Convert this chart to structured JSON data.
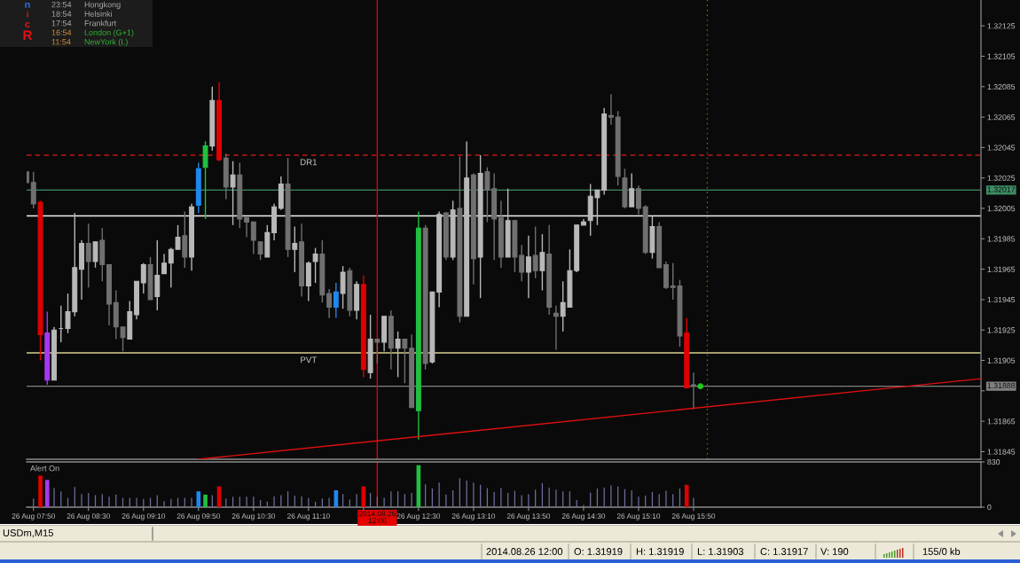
{
  "chart_data": [
    {
      "type": "candlestick",
      "x": [
        "2014-08-26T07:45",
        "2014-08-26T07:50",
        "2014-08-26T07:55",
        "2014-08-26T08:00",
        "2014-08-26T08:05",
        "2014-08-26T08:10",
        "2014-08-26T08:15",
        "2014-08-26T08:20",
        "2014-08-26T08:25",
        "2014-08-26T08:30",
        "2014-08-26T08:35",
        "2014-08-26T08:40",
        "2014-08-26T08:45",
        "2014-08-26T08:50",
        "2014-08-26T08:55",
        "2014-08-26T09:00",
        "2014-08-26T09:05",
        "2014-08-26T09:10",
        "2014-08-26T09:15",
        "2014-08-26T09:20",
        "2014-08-26T09:25",
        "2014-08-26T09:30",
        "2014-08-26T09:35",
        "2014-08-26T09:40",
        "2014-08-26T09:45",
        "2014-08-26T09:50",
        "2014-08-26T09:55",
        "2014-08-26T10:00",
        "2014-08-26T10:05",
        "2014-08-26T10:10",
        "2014-08-26T10:15",
        "2014-08-26T10:20",
        "2014-08-26T10:25",
        "2014-08-26T10:30",
        "2014-08-26T10:35",
        "2014-08-26T10:40",
        "2014-08-26T10:45",
        "2014-08-26T10:50",
        "2014-08-26T10:55",
        "2014-08-26T11:00",
        "2014-08-26T11:05",
        "2014-08-26T11:10",
        "2014-08-26T11:15",
        "2014-08-26T11:20",
        "2014-08-26T11:25",
        "2014-08-26T11:30",
        "2014-08-26T11:35",
        "2014-08-26T11:40",
        "2014-08-26T11:45",
        "2014-08-26T11:50",
        "2014-08-26T11:55",
        "2014-08-26T12:00",
        "2014-08-26T12:05",
        "2014-08-26T12:10",
        "2014-08-26T12:15",
        "2014-08-26T12:20",
        "2014-08-26T12:25",
        "2014-08-26T12:30",
        "2014-08-26T12:35",
        "2014-08-26T12:40",
        "2014-08-26T12:45",
        "2014-08-26T12:50",
        "2014-08-26T12:55",
        "2014-08-26T13:00",
        "2014-08-26T13:05",
        "2014-08-26T13:10",
        "2014-08-26T13:15",
        "2014-08-26T13:20",
        "2014-08-26T13:25",
        "2014-08-26T13:30",
        "2014-08-26T13:35",
        "2014-08-26T13:40",
        "2014-08-26T13:45",
        "2014-08-26T13:50",
        "2014-08-26T13:55",
        "2014-08-26T14:00",
        "2014-08-26T14:05",
        "2014-08-26T14:10",
        "2014-08-26T14:15",
        "2014-08-26T14:20",
        "2014-08-26T14:25",
        "2014-08-26T14:30",
        "2014-08-26T14:35",
        "2014-08-26T14:40",
        "2014-08-26T14:45",
        "2014-08-26T14:50",
        "2014-08-26T14:55",
        "2014-08-26T15:00",
        "2014-08-26T15:05",
        "2014-08-26T15:10",
        "2014-08-26T15:15",
        "2014-08-26T15:20",
        "2014-08-26T15:25",
        "2014-08-26T15:30",
        "2014-08-26T15:35",
        "2014-08-26T15:40",
        "2014-08-26T15:45",
        "2014-08-26T15:50"
      ],
      "ohlc": [
        [
          1.32029,
          1.32029,
          1.32022,
          1.32022
        ],
        [
          1.32022,
          1.32029,
          1.32005,
          1.32008
        ],
        [
          1.32009,
          1.3201,
          1.31905,
          1.31922
        ],
        [
          1.31923,
          1.31937,
          1.31889,
          1.31892
        ],
        [
          1.31892,
          1.31927,
          1.31892,
          1.31925
        ],
        [
          1.31926,
          1.31941,
          1.31917,
          1.31926
        ],
        [
          1.31926,
          1.31949,
          1.31923,
          1.31937
        ],
        [
          1.31937,
          1.32002,
          1.31934,
          1.31966
        ],
        [
          1.31965,
          1.31984,
          1.31945,
          1.31982
        ],
        [
          1.31982,
          1.31995,
          1.31953,
          1.3197
        ],
        [
          1.3197,
          1.31983,
          1.31966,
          1.31983
        ],
        [
          1.31984,
          1.31992,
          1.31957,
          1.31968
        ],
        [
          1.31968,
          1.31968,
          1.31928,
          1.31942
        ],
        [
          1.31943,
          1.31951,
          1.31919,
          1.31927
        ],
        [
          1.31927,
          1.31927,
          1.31911,
          1.3192
        ],
        [
          1.31919,
          1.31944,
          1.31919,
          1.31937
        ],
        [
          1.31935,
          1.31957,
          1.31932,
          1.31957
        ],
        [
          1.31956,
          1.31969,
          1.31949,
          1.31968
        ],
        [
          1.31968,
          1.31973,
          1.31945,
          1.31945
        ],
        [
          1.31947,
          1.31984,
          1.31938,
          1.31961
        ],
        [
          1.31962,
          1.31975,
          1.31962,
          1.31969
        ],
        [
          1.31969,
          1.31979,
          1.31953,
          1.31978
        ],
        [
          1.31978,
          1.31994,
          1.31978,
          1.31986
        ],
        [
          1.31987,
          1.32003,
          1.31966,
          1.31973
        ],
        [
          1.31973,
          1.32008,
          1.31964,
          1.32006
        ],
        [
          1.32007,
          1.32035,
          1.32002,
          1.32031
        ],
        [
          1.32032,
          1.32049,
          1.31998,
          1.32046
        ],
        [
          1.32046,
          1.32085,
          1.32043,
          1.32076
        ],
        [
          1.32076,
          1.32088,
          1.32036,
          1.32037
        ],
        [
          1.32038,
          1.32041,
          1.32011,
          1.32019
        ],
        [
          1.32019,
          1.32036,
          1.31994,
          1.32027
        ],
        [
          1.32027,
          1.32035,
          1.31992,
          1.31998
        ],
        [
          1.31999,
          1.31999,
          1.31986,
          1.31996
        ],
        [
          1.31996,
          1.31996,
          1.31975,
          1.31984
        ],
        [
          1.31983,
          1.31983,
          1.31971,
          1.31975
        ],
        [
          1.31973,
          1.31994,
          1.31973,
          1.31989
        ],
        [
          1.31989,
          1.32008,
          1.31984,
          1.32006
        ],
        [
          1.32005,
          1.32026,
          1.32004,
          1.32021
        ],
        [
          1.32021,
          1.32038,
          1.31973,
          1.31978
        ],
        [
          1.31978,
          1.31993,
          1.31963,
          1.31982
        ],
        [
          1.31983,
          1.31995,
          1.31947,
          1.31954
        ],
        [
          1.31954,
          1.3197,
          1.31944,
          1.31969
        ],
        [
          1.3197,
          1.31979,
          1.31956,
          1.31975
        ],
        [
          1.31975,
          1.31984,
          1.31943,
          1.31948
        ],
        [
          1.31949,
          1.31952,
          1.31933,
          1.3194
        ],
        [
          1.3194,
          1.31956,
          1.31933,
          1.3195
        ],
        [
          1.31949,
          1.31967,
          1.31939,
          1.31963
        ],
        [
          1.31964,
          1.31966,
          1.31934,
          1.31938
        ],
        [
          1.31938,
          1.31957,
          1.31932,
          1.31955
        ],
        [
          1.31955,
          1.31961,
          1.31894,
          1.31899
        ],
        [
          1.31897,
          1.31935,
          1.31893,
          1.31919
        ],
        [
          1.31919,
          1.31919,
          1.31903,
          1.31917
        ],
        [
          1.31917,
          1.31934,
          1.31911,
          1.31934
        ],
        [
          1.31934,
          1.31938,
          1.31899,
          1.31913
        ],
        [
          1.31913,
          1.31924,
          1.31894,
          1.31919
        ],
        [
          1.31919,
          1.31919,
          1.3189,
          1.31913
        ],
        [
          1.31913,
          1.31922,
          1.31874,
          1.31874
        ],
        [
          1.31872,
          1.32003,
          1.31853,
          1.31992
        ],
        [
          1.31992,
          1.31994,
          1.31899,
          1.31903
        ],
        [
          1.31904,
          1.3195,
          1.31903,
          1.3195
        ],
        [
          1.3195,
          1.32003,
          1.3194,
          1.32001
        ],
        [
          1.32002,
          1.32002,
          1.31971,
          1.31973
        ],
        [
          1.31973,
          1.3201,
          1.31971,
          1.32004
        ],
        [
          1.32005,
          1.32039,
          1.3193,
          1.31934
        ],
        [
          1.31934,
          1.32049,
          1.31934,
          1.32025
        ],
        [
          1.32027,
          1.32028,
          1.31955,
          1.31972
        ],
        [
          1.31973,
          1.3204,
          1.31946,
          1.32028
        ],
        [
          1.32029,
          1.32032,
          1.31996,
          1.32017
        ],
        [
          1.32018,
          1.32028,
          1.31971,
          1.31998
        ],
        [
          1.31999,
          1.3201,
          1.31966,
          1.31973
        ],
        [
          1.31973,
          1.32018,
          1.31973,
          1.31997
        ],
        [
          1.31997,
          1.31997,
          1.31963,
          1.31973
        ],
        [
          1.31974,
          1.31981,
          1.31957,
          1.31963
        ],
        [
          1.31963,
          1.31987,
          1.31946,
          1.31973
        ],
        [
          1.31974,
          1.31993,
          1.31959,
          1.31964
        ],
        [
          1.31964,
          1.31988,
          1.31951,
          1.31976
        ],
        [
          1.31975,
          1.31994,
          1.31935,
          1.3194
        ],
        [
          1.31936,
          1.31941,
          1.31912,
          1.31934
        ],
        [
          1.31934,
          1.31957,
          1.31924,
          1.31943
        ],
        [
          1.3194,
          1.31978,
          1.3194,
          1.31964
        ],
        [
          1.31964,
          1.31994,
          1.31963,
          1.31994
        ],
        [
          1.31994,
          1.31998,
          1.31994,
          1.31996
        ],
        [
          1.31997,
          1.32021,
          1.31987,
          1.32013
        ],
        [
          1.32012,
          1.32017,
          1.31994,
          1.32017
        ],
        [
          1.32017,
          1.32071,
          1.32014,
          1.32067
        ],
        [
          1.32066,
          1.3208,
          1.3206,
          1.32065
        ],
        [
          1.32065,
          1.32069,
          1.3202,
          1.32026
        ],
        [
          1.32025,
          1.32031,
          1.32005,
          1.32006
        ],
        [
          1.32006,
          1.32028,
          1.32006,
          1.32018
        ],
        [
          1.32018,
          1.3202,
          1.32001,
          1.32005
        ],
        [
          1.32006,
          1.32007,
          1.31975,
          1.31976
        ],
        [
          1.31976,
          1.32,
          1.31972,
          1.31993
        ],
        [
          1.31993,
          1.31996,
          1.31966,
          1.31966
        ],
        [
          1.31968,
          1.3197,
          1.31952,
          1.31953
        ],
        [
          1.31954,
          1.31969,
          1.31945,
          1.31953
        ],
        [
          1.31954,
          1.31958,
          1.31914,
          1.31921
        ],
        [
          1.31923,
          1.31933,
          1.31887,
          1.31887
        ],
        [
          1.31889,
          1.31897,
          1.31873,
          1.31888
        ]
      ],
      "colors": [
        "#707070",
        "#707070",
        "#e00000",
        "#a838f0",
        "#b8b8b8",
        "#b8b8b8",
        "#b8b8b8",
        "#b8b8b8",
        "#b8b8b8",
        "#707070",
        "#b8b8b8",
        "#707070",
        "#707070",
        "#707070",
        "#707070",
        "#b8b8b8",
        "#b8b8b8",
        "#b8b8b8",
        "#707070",
        "#b8b8b8",
        "#b8b8b8",
        "#b8b8b8",
        "#b8b8b8",
        "#707070",
        "#b8b8b8",
        "#1e88f0",
        "#20c040",
        "#b8b8b8",
        "#e00000",
        "#707070",
        "#b8b8b8",
        "#707070",
        "#707070",
        "#707070",
        "#707070",
        "#b8b8b8",
        "#b8b8b8",
        "#b8b8b8",
        "#707070",
        "#b8b8b8",
        "#707070",
        "#b8b8b8",
        "#b8b8b8",
        "#707070",
        "#707070",
        "#1e88f0",
        "#b8b8b8",
        "#707070",
        "#b8b8b8",
        "#e00000",
        "#b8b8b8",
        "#707070",
        "#b8b8b8",
        "#707070",
        "#b8b8b8",
        "#707070",
        "#707070",
        "#20c040",
        "#707070",
        "#b8b8b8",
        "#b8b8b8",
        "#707070",
        "#b8b8b8",
        "#707070",
        "#b8b8b8",
        "#707070",
        "#b8b8b8",
        "#707070",
        "#707070",
        "#707070",
        "#b8b8b8",
        "#707070",
        "#707070",
        "#b8b8b8",
        "#707070",
        "#b8b8b8",
        "#707070",
        "#707070",
        "#b8b8b8",
        "#b8b8b8",
        "#b8b8b8",
        "#b8b8b8",
        "#b8b8b8",
        "#b8b8b8",
        "#b8b8b8",
        "#707070",
        "#707070",
        "#707070",
        "#b8b8b8",
        "#707070",
        "#707070",
        "#b8b8b8",
        "#707070",
        "#707070",
        "#707070",
        "#707070",
        "#e00000",
        "#707070"
      ],
      "series": [
        {
          "type": "line",
          "x": [
            "2014-08-26T09:50",
            "2014-08-26T19:19"
          ],
          "values": [
            1.3184,
            1.31893
          ],
          "color": "#e01010"
        },
        {
          "type": "scatter",
          "x": [
            "2014-08-26T15:55"
          ],
          "values": [
            1.31888
          ],
          "color": "#20c820",
          "marker": "circle"
        }
      ],
      "xlim": [
        "2014-08-26T07:45",
        "2014-08-26T19:19"
      ],
      "ylim": [
        1.3184,
        1.32142
      ],
      "yticks": [
        1.31845,
        1.31865,
        {
          "value": 1.31885,
          "label": null
        },
        1.31905,
        1.31925,
        1.31945,
        1.31965,
        1.31985,
        1.32005,
        1.32025,
        1.32045,
        1.32065,
        1.32085,
        1.32105,
        1.32125
      ],
      "tick_labels": "y",
      "ref_lines": [
        {
          "axis": "y",
          "value": 1.3204,
          "color": "#c01818",
          "line_style": "dashed"
        },
        {
          "axis": "y",
          "value": 1.32017,
          "label": "1.32017",
          "color": "#3c8c64"
        },
        {
          "axis": "y",
          "value": 1.32,
          "color": "#f0f0f0"
        },
        {
          "axis": "y",
          "value": 1.3191,
          "color": "#d8d090"
        },
        {
          "axis": "y",
          "value": 1.31888,
          "label": "1.31888",
          "color": "#808080"
        },
        {
          "axis": "x",
          "value": "2014-08-26T12:00",
          "color": "#e00000"
        },
        {
          "axis": "x",
          "value": "2014-08-26T16:00",
          "color": "#6e6e1e",
          "line_style": "dotted"
        }
      ],
      "annotations": [
        {
          "text": "DR1",
          "x": "2014-08-26T11:10",
          "y": 1.3204
        },
        {
          "text": "PVT",
          "x": "2014-08-26T11:10",
          "y": 1.3191
        },
        "n",
        "i",
        "c",
        "R",
        "23:54",
        "Hongkong",
        "18:54",
        "Helsinki",
        "17:54",
        "Frankfurt",
        "16:54",
        "London (G+1)",
        "11:54",
        "NewYork (L)",
        "USDm,M15",
        "2014.08.26 12:00",
        "O: 1.31919",
        "H: 1.31919",
        "L: 1.31903",
        "C: 1.31917",
        "V: 190",
        "155/0 kb"
      ]
    },
    {
      "type": "bar",
      "x": [
        "2014-08-26T07:50",
        "2014-08-26T07:55",
        "2014-08-26T08:00",
        "2014-08-26T08:05",
        "2014-08-26T08:10",
        "2014-08-26T08:15",
        "2014-08-26T08:20",
        "2014-08-26T08:25",
        "2014-08-26T08:30",
        "2014-08-26T08:35",
        "2014-08-26T08:40",
        "2014-08-26T08:45",
        "2014-08-26T08:50",
        "2014-08-26T08:55",
        "2014-08-26T09:00",
        "2014-08-26T09:05",
        "2014-08-26T09:10",
        "2014-08-26T09:15",
        "2014-08-26T09:20",
        "2014-08-26T09:25",
        "2014-08-26T09:30",
        "2014-08-26T09:35",
        "2014-08-26T09:40",
        "2014-08-26T09:45",
        "2014-08-26T09:50",
        "2014-08-26T09:55",
        "2014-08-26T10:00",
        "2014-08-26T10:05",
        "2014-08-26T10:10",
        "2014-08-26T10:15",
        "2014-08-26T10:20",
        "2014-08-26T10:25",
        "2014-08-26T10:30",
        "2014-08-26T10:35",
        "2014-08-26T10:40",
        "2014-08-26T10:45",
        "2014-08-26T10:50",
        "2014-08-26T10:55",
        "2014-08-26T11:00",
        "2014-08-26T11:05",
        "2014-08-26T11:10",
        "2014-08-26T11:15",
        "2014-08-26T11:20",
        "2014-08-26T11:25",
        "2014-08-26T11:30",
        "2014-08-26T11:35",
        "2014-08-26T11:40",
        "2014-08-26T11:45",
        "2014-08-26T11:50",
        "2014-08-26T11:55",
        "2014-08-26T12:00",
        "2014-08-26T12:05",
        "2014-08-26T12:10",
        "2014-08-26T12:15",
        "2014-08-26T12:20",
        "2014-08-26T12:25",
        "2014-08-26T12:30",
        "2014-08-26T12:35",
        "2014-08-26T12:40",
        "2014-08-26T12:45",
        "2014-08-26T12:50",
        "2014-08-26T12:55",
        "2014-08-26T13:00",
        "2014-08-26T13:05",
        "2014-08-26T13:10",
        "2014-08-26T13:15",
        "2014-08-26T13:20",
        "2014-08-26T13:25",
        "2014-08-26T13:30",
        "2014-08-26T13:35",
        "2014-08-26T13:40",
        "2014-08-26T13:45",
        "2014-08-26T13:50",
        "2014-08-26T13:55",
        "2014-08-26T14:00",
        "2014-08-26T14:05",
        "2014-08-26T14:10",
        "2014-08-26T14:15",
        "2014-08-26T14:20",
        "2014-08-26T14:25",
        "2014-08-26T14:30",
        "2014-08-26T14:35",
        "2014-08-26T14:40",
        "2014-08-26T14:45",
        "2014-08-26T14:50",
        "2014-08-26T14:55",
        "2014-08-26T15:00",
        "2014-08-26T15:05",
        "2014-08-26T15:10",
        "2014-08-26T15:15",
        "2014-08-26T15:20",
        "2014-08-26T15:25",
        "2014-08-26T15:30",
        "2014-08-26T15:35",
        "2014-08-26T15:40",
        "2014-08-26T15:45",
        "2014-08-26T15:50"
      ],
      "values": [
        160,
        580,
        500,
        350,
        290,
        170,
        370,
        240,
        260,
        220,
        240,
        190,
        230,
        170,
        170,
        170,
        150,
        170,
        220,
        110,
        150,
        170,
        170,
        170,
        290,
        230,
        220,
        380,
        160,
        190,
        190,
        190,
        190,
        130,
        100,
        200,
        220,
        290,
        210,
        200,
        170,
        100,
        160,
        170,
        310,
        240,
        140,
        240,
        380,
        260,
        190,
        170,
        290,
        290,
        240,
        260,
        770,
        420,
        340,
        450,
        230,
        310,
        530,
        490,
        450,
        410,
        350,
        280,
        350,
        260,
        300,
        220,
        240,
        320,
        440,
        360,
        320,
        290,
        290,
        130,
        40,
        270,
        340,
        360,
        400,
        380,
        330,
        310,
        190,
        210,
        280,
        240,
        300,
        240,
        340,
        410,
        170
      ],
      "color": "#6f6fa0",
      "colors": [
        "#6f6fa0",
        "#e00000",
        "#a838f0",
        "#6f6fa0",
        "#6f6fa0",
        "#6f6fa0",
        "#6f6fa0",
        "#6f6fa0",
        "#6f6fa0",
        "#6f6fa0",
        "#6f6fa0",
        "#6f6fa0",
        "#6f6fa0",
        "#6f6fa0",
        "#6f6fa0",
        "#6f6fa0",
        "#6f6fa0",
        "#6f6fa0",
        "#6f6fa0",
        "#6f6fa0",
        "#6f6fa0",
        "#6f6fa0",
        "#6f6fa0",
        "#6f6fa0",
        "#1e88f0",
        "#20c040",
        "#6f6fa0",
        "#e00000",
        "#6f6fa0",
        "#6f6fa0",
        "#6f6fa0",
        "#6f6fa0",
        "#6f6fa0",
        "#6f6fa0",
        "#6f6fa0",
        "#6f6fa0",
        "#6f6fa0",
        "#6f6fa0",
        "#6f6fa0",
        "#6f6fa0",
        "#6f6fa0",
        "#6f6fa0",
        "#6f6fa0",
        "#6f6fa0",
        "#1e88f0",
        "#6f6fa0",
        "#6f6fa0",
        "#6f6fa0",
        "#e00000",
        "#6f6fa0",
        "#6f6fa0",
        "#6f6fa0",
        "#6f6fa0",
        "#6f6fa0",
        "#6f6fa0",
        "#6f6fa0",
        "#20c040",
        "#6f6fa0",
        "#6f6fa0",
        "#6f6fa0",
        "#6f6fa0",
        "#6f6fa0",
        "#6f6fa0",
        "#6f6fa0",
        "#6f6fa0",
        "#6f6fa0",
        "#6f6fa0",
        "#6f6fa0",
        "#6f6fa0",
        "#6f6fa0",
        "#6f6fa0",
        "#6f6fa0",
        "#6f6fa0",
        "#6f6fa0",
        "#6f6fa0",
        "#6f6fa0",
        "#6f6fa0",
        "#6f6fa0",
        "#6f6fa0",
        "#6f6fa0",
        "#6f6fa0",
        "#6f6fa0",
        "#6f6fa0",
        "#6f6fa0",
        "#6f6fa0",
        "#6f6fa0",
        "#6f6fa0",
        "#6f6fa0",
        "#6f6fa0",
        "#6f6fa0",
        "#6f6fa0",
        "#6f6fa0",
        "#6f6fa0",
        "#6f6fa0",
        "#6f6fa0",
        "#e00000",
        "#6f6fa0"
      ],
      "xlim": [
        "2014-08-26T07:45",
        "2014-08-26T19:19"
      ],
      "ylim": [
        0,
        830
      ],
      "yticks": [
        0,
        830
      ],
      "xticks": [
        {
          "value": "2014-08-26T07:50",
          "label": "26 Aug 07:50"
        },
        {
          "value": "2014-08-26T08:30",
          "label": "26 Aug 08:30"
        },
        {
          "value": "2014-08-26T09:10",
          "label": "26 Aug 09:10"
        },
        {
          "value": "2014-08-26T09:50",
          "label": "26 Aug 09:50"
        },
        {
          "value": "2014-08-26T10:30",
          "label": "26 Aug 10:30"
        },
        {
          "value": "2014-08-26T11:10",
          "label": "26 Aug 11:10"
        },
        {
          "value": "2014-08-26T11:50",
          "label": null
        },
        {
          "value": "2014-08-26T12:30",
          "label": "26 Aug 12:30"
        },
        {
          "value": "2014-08-26T13:10",
          "label": "26 Aug 13:10"
        },
        {
          "value": "2014-08-26T13:50",
          "label": "26 Aug 13:50"
        },
        {
          "value": "2014-08-26T14:30",
          "label": "26 Aug 14:30"
        },
        {
          "value": "2014-08-26T15:10",
          "label": "26 Aug 15:10"
        },
        {
          "value": "2014-08-26T15:50",
          "label": "26 Aug 15:50"
        }
      ],
      "ref_lines": [
        {
          "axis": "x",
          "value": "2014-08-26T12:00",
          "label": "2014.08.26 12:00",
          "color": "#e60000"
        }
      ],
      "annotations": [
        "Alert On"
      ]
    }
  ]
}
